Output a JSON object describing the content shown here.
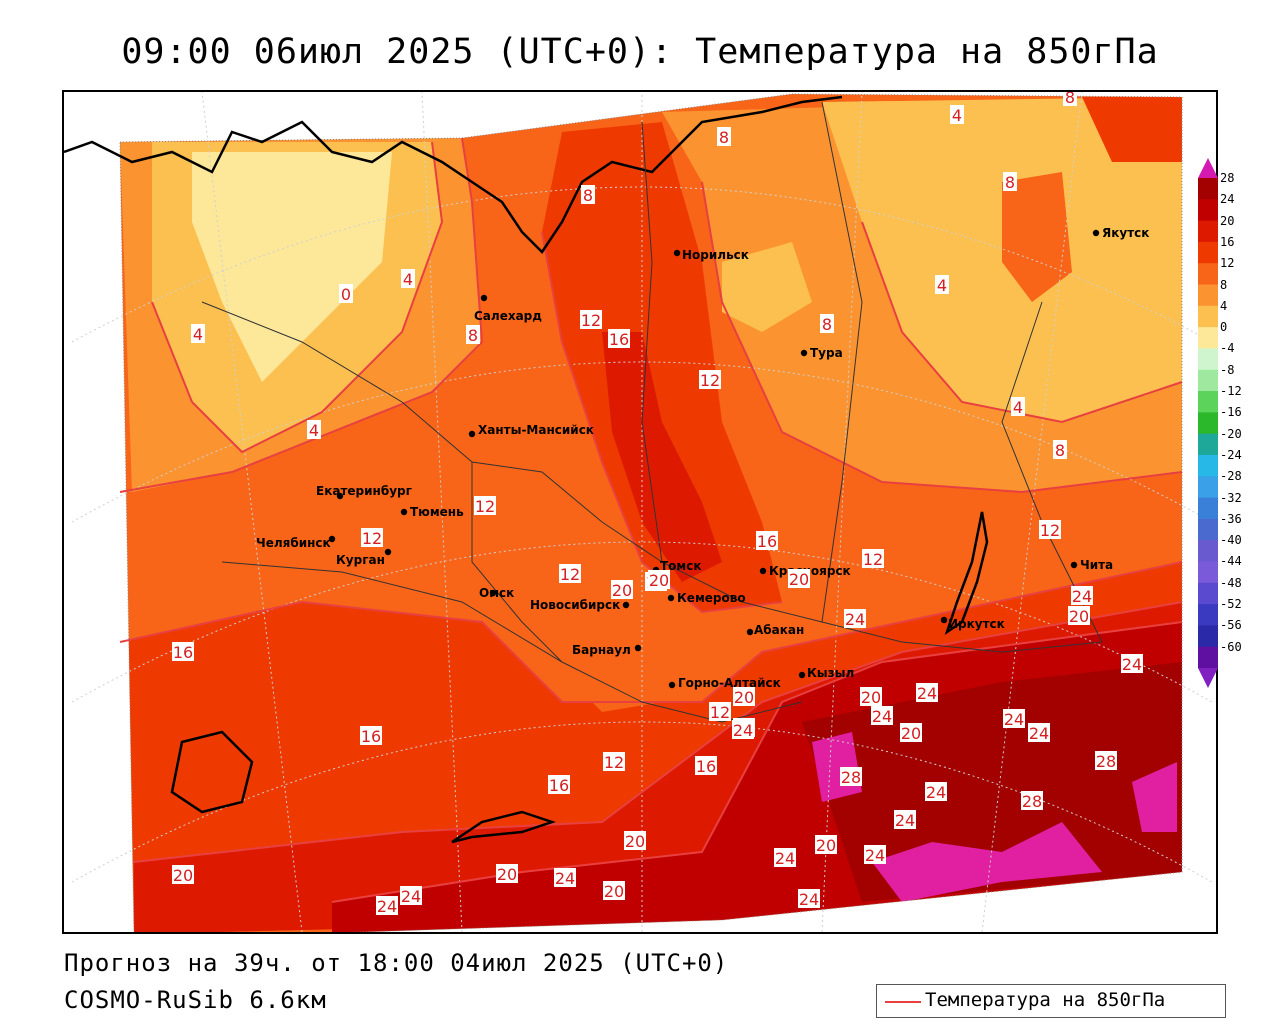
{
  "title": "09:00 06июл 2025 (UTC+0): Температура на 850гПа",
  "forecast_line": "Прогноз на 39ч. от 18:00 04июл 2025 (UTC+0)",
  "model_line": "COSMO-RuSib 6.6км",
  "legend": {
    "label": "Температура на 850гПа",
    "line_color": "#e84040"
  },
  "colorbar": {
    "levels": [
      "28",
      "24",
      "20",
      "16",
      "12",
      "8",
      "4",
      "0",
      "-4",
      "-8",
      "-12",
      "-16",
      "-20",
      "-24",
      "-28",
      "-32",
      "-36",
      "-40",
      "-44",
      "-48",
      "-52",
      "-56",
      "-60"
    ],
    "colors": [
      "#a30000",
      "#c00000",
      "#dd1a00",
      "#ee3a00",
      "#f86418",
      "#fb9430",
      "#fcc050",
      "#fde89a",
      "#cff5cf",
      "#9fe89f",
      "#5cd45c",
      "#2bb82b",
      "#1ea89a",
      "#28b8e8",
      "#3aa0e8",
      "#3a80d8",
      "#4a6ad0",
      "#6a5ad0",
      "#7a5ad8",
      "#5a4ad0",
      "#3a3ac0",
      "#2a2aa8",
      "#6010a0"
    ],
    "top_arrow_color": "#d41ab0",
    "bottom_arrow_color": "#8020c0"
  },
  "cities": [
    {
      "name": "Норильск"
    },
    {
      "name": "Салехард"
    },
    {
      "name": "Тура"
    },
    {
      "name": "Якутск"
    },
    {
      "name": "Ханты-Мансийск"
    },
    {
      "name": "Екатеринбург"
    },
    {
      "name": "Тюмень"
    },
    {
      "name": "Челябинск"
    },
    {
      "name": "Курган"
    },
    {
      "name": "Омск"
    },
    {
      "name": "Новосибирск"
    },
    {
      "name": "Томск"
    },
    {
      "name": "Кемерово"
    },
    {
      "name": "Красноярск"
    },
    {
      "name": "Абакан"
    },
    {
      "name": "Барнаул"
    },
    {
      "name": "Горно-Алтайск"
    },
    {
      "name": "Кызыл"
    },
    {
      "name": "Иркутск"
    },
    {
      "name": "Чита"
    }
  ],
  "isotherm_labels": [
    "8",
    "8",
    "4",
    "8",
    "4",
    "0",
    "4",
    "4",
    "8",
    "12",
    "16",
    "12",
    "8",
    "4",
    "4",
    "8",
    "8",
    "12",
    "12",
    "16",
    "12",
    "12",
    "12",
    "16",
    "16",
    "20",
    "24",
    "20",
    "16",
    "20",
    "20",
    "24",
    "20",
    "24",
    "24",
    "24",
    "28",
    "24",
    "12",
    "24",
    "20",
    "24",
    "16",
    "12",
    "16",
    "20",
    "28",
    "24",
    "24",
    "20",
    "28",
    "24",
    "20",
    "24",
    "20",
    "24",
    "24",
    "20",
    "24",
    "24",
    "20",
    "24"
  ]
}
